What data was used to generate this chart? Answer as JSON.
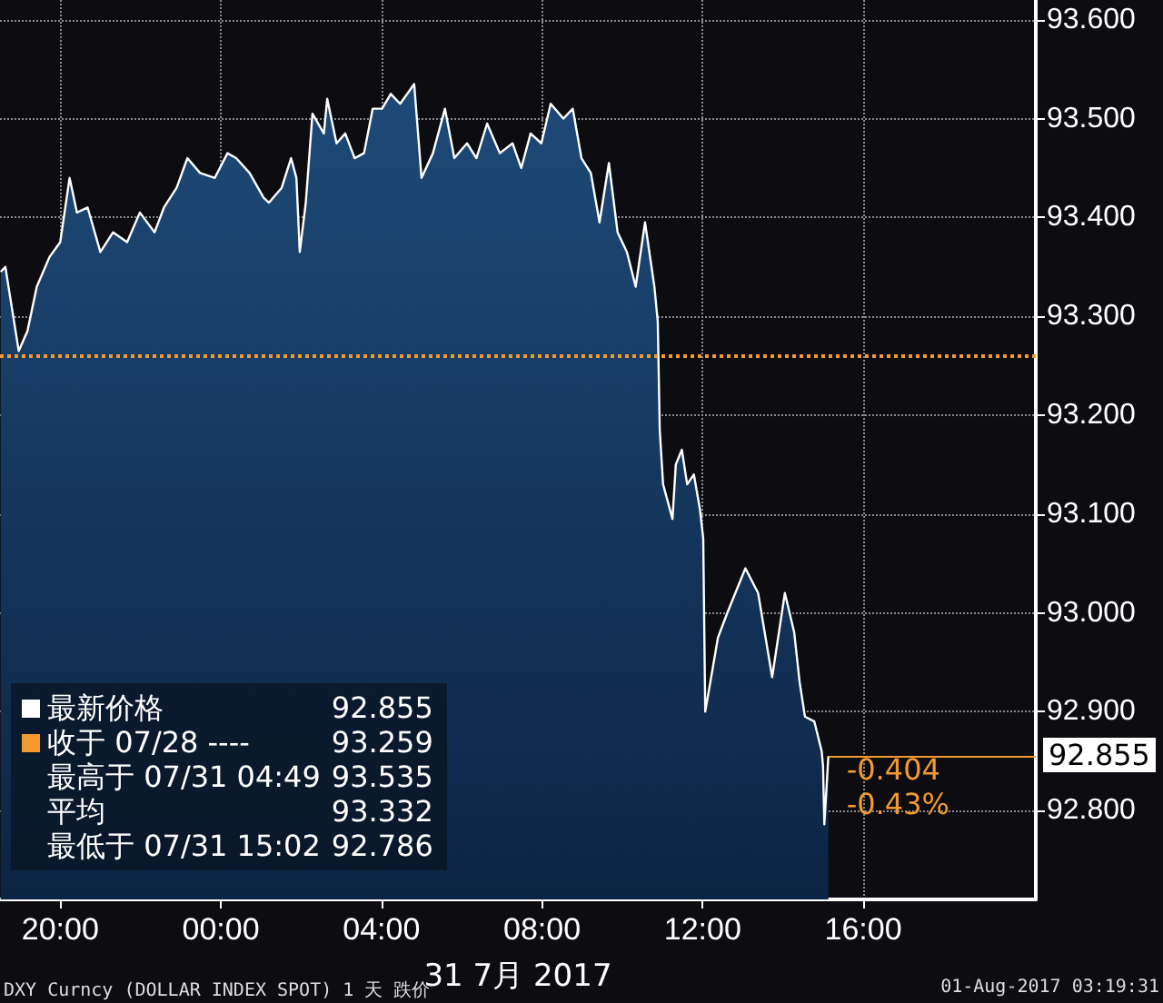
{
  "chart_data": {
    "type": "area",
    "xlabel": "31 7月 2017",
    "x": [
      "2017-07-30T18:31",
      "2017-07-30T18:38",
      "2017-07-30T18:58",
      "2017-07-30T19:11",
      "2017-07-30T19:25",
      "2017-07-30T19:44",
      "2017-07-30T20:00",
      "2017-07-30T20:14",
      "2017-07-30T20:25",
      "2017-07-30T20:41",
      "2017-07-30T21:00",
      "2017-07-30T21:19",
      "2017-07-30T21:40",
      "2017-07-30T21:59",
      "2017-07-30T22:21",
      "2017-07-30T22:35",
      "2017-07-30T22:54",
      "2017-07-30T23:10",
      "2017-07-30T23:29",
      "2017-07-30T23:51",
      "2017-07-31T00:10",
      "2017-07-31T00:23",
      "2017-07-31T00:43",
      "2017-07-31T01:04",
      "2017-07-31T01:12",
      "2017-07-31T01:31",
      "2017-07-31T01:45",
      "2017-07-31T01:53",
      "2017-07-31T01:58",
      "2017-07-31T02:07",
      "2017-07-31T02:17",
      "2017-07-31T02:34",
      "2017-07-31T02:39",
      "2017-07-31T02:53",
      "2017-07-31T03:06",
      "2017-07-31T03:20",
      "2017-07-31T03:34",
      "2017-07-31T03:47",
      "2017-07-31T04:01",
      "2017-07-31T04:14",
      "2017-07-31T04:28",
      "2017-07-31T04:49",
      "2017-07-31T05:00",
      "2017-07-31T05:17",
      "2017-07-31T05:35",
      "2017-07-31T05:49",
      "2017-07-31T06:08",
      "2017-07-31T06:22",
      "2017-07-31T06:38",
      "2017-07-31T06:57",
      "2017-07-31T07:16",
      "2017-07-31T07:29",
      "2017-07-31T07:43",
      "2017-07-31T07:59",
      "2017-07-31T08:13",
      "2017-07-31T08:32",
      "2017-07-31T08:46",
      "2017-07-31T08:59",
      "2017-07-31T09:13",
      "2017-07-31T09:26",
      "2017-07-31T09:40",
      "2017-07-31T09:53",
      "2017-07-31T10:07",
      "2017-07-31T10:20",
      "2017-07-31T10:34",
      "2017-07-31T10:48",
      "2017-07-31T10:53",
      "2017-07-31T10:56",
      "2017-07-31T11:01",
      "2017-07-31T11:07",
      "2017-07-31T11:15",
      "2017-07-31T11:20",
      "2017-07-31T11:29",
      "2017-07-31T11:37",
      "2017-07-31T11:47",
      "2017-07-31T11:56",
      "2017-07-31T12:01",
      "2017-07-31T12:04",
      "2017-07-31T12:23",
      "2017-07-31T12:37",
      "2017-07-31T13:04",
      "2017-07-31T13:23",
      "2017-07-31T13:44",
      "2017-07-31T14:03",
      "2017-07-31T14:17",
      "2017-07-31T14:25",
      "2017-07-31T14:33",
      "2017-07-31T14:47",
      "2017-07-31T14:58",
      "2017-07-31T15:00",
      "2017-07-31T15:02",
      "2017-07-31T15:08"
    ],
    "series": [
      {
        "color": "#ffffff",
        "values": [
          93.345,
          93.35,
          93.265,
          93.285,
          93.33,
          93.36,
          93.375,
          93.44,
          93.405,
          93.41,
          93.365,
          93.385,
          93.375,
          93.405,
          93.385,
          93.41,
          93.43,
          93.46,
          93.445,
          93.44,
          93.465,
          93.46,
          93.445,
          93.42,
          93.415,
          93.43,
          93.46,
          93.44,
          93.365,
          93.415,
          93.505,
          93.485,
          93.52,
          93.475,
          93.485,
          93.46,
          93.465,
          93.51,
          93.51,
          93.525,
          93.515,
          93.535,
          93.44,
          93.465,
          93.51,
          93.46,
          93.475,
          93.46,
          93.495,
          93.465,
          93.475,
          93.45,
          93.485,
          93.475,
          93.515,
          93.5,
          93.51,
          93.46,
          93.445,
          93.395,
          93.455,
          93.385,
          93.365,
          93.33,
          93.395,
          93.33,
          93.295,
          93.185,
          93.13,
          93.115,
          93.095,
          93.15,
          93.165,
          93.13,
          93.14,
          93.105,
          93.075,
          92.9,
          92.975,
          93.0,
          93.045,
          93.02,
          92.935,
          93.02,
          92.98,
          92.93,
          92.895,
          92.89,
          92.86,
          92.845,
          92.786,
          92.855
        ]
      }
    ],
    "xlim": [
      "2017-07-30T18:30",
      "2017-07-31T20:18"
    ],
    "xticks": [
      {
        "value": "2017-07-30T20:00",
        "label": "20:00"
      },
      {
        "value": "2017-07-31T00:00",
        "label": "00:00"
      },
      {
        "value": "2017-07-31T04:00",
        "label": "04:00"
      },
      {
        "value": "2017-07-31T08:00",
        "label": "08:00"
      },
      {
        "value": "2017-07-31T12:00",
        "label": "12:00"
      },
      {
        "value": "2017-07-31T16:00",
        "label": "16:00"
      }
    ],
    "ylim": [
      92.71,
      93.62
    ],
    "yticks": [
      {
        "value": 92.8,
        "label": "92.800"
      },
      {
        "value": 92.9,
        "label": "92.900"
      },
      {
        "value": 93.0,
        "label": "93.000"
      },
      {
        "value": 93.1,
        "label": "93.100"
      },
      {
        "value": 93.2,
        "label": "93.200"
      },
      {
        "value": 93.3,
        "label": "93.300"
      },
      {
        "value": 93.4,
        "label": "93.400"
      },
      {
        "value": 93.5,
        "label": "93.500"
      },
      {
        "value": 93.6,
        "label": "93.600"
      }
    ],
    "ref_lines": [
      {
        "axis": "y",
        "value": 93.259,
        "color": "#f29a2e",
        "line_style": "dotted"
      }
    ],
    "grid": true,
    "annotations": [
      "最新价格 92.855",
      "收于 07/28 ---- 93.259",
      "最高于 07/31 04:49 93.535",
      "平均 93.332",
      "最低于 07/31 15:02 92.786",
      "-0.404",
      "-0.43%",
      {
        "text": "92.855",
        "x": "2017-07-31T15:08",
        "y": 92.855
      },
      "DXY Curncy (DOLLAR INDEX SPOT) 1 天 跌价",
      "01-Aug-2017 03:19:31"
    ]
  }
}
